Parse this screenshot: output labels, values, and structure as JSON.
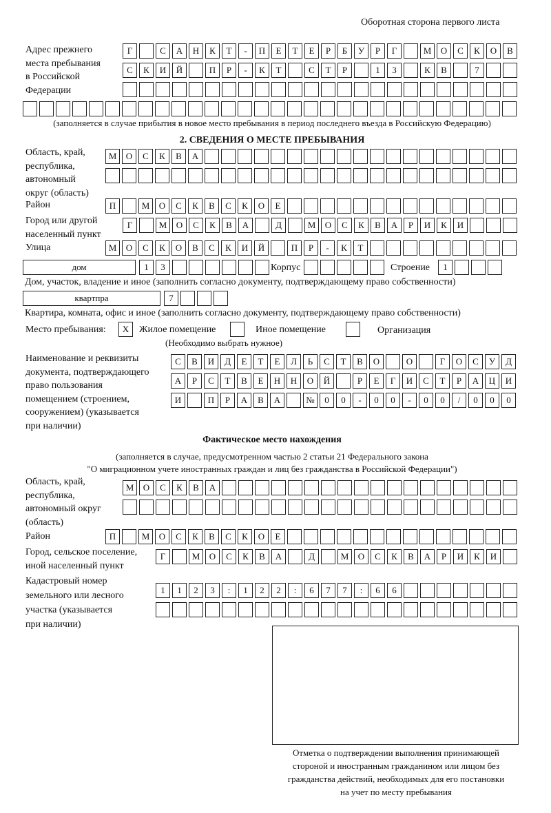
{
  "header": "Оборотная сторона первого листа",
  "prev_address": {
    "label": [
      "Адрес прежнего",
      "места пребывания",
      "в Российской",
      "Федерации"
    ],
    "rows": [
      [
        "Г",
        "",
        "С",
        "А",
        "Н",
        "К",
        "Т",
        "-",
        "П",
        "Е",
        "Т",
        "Е",
        "Р",
        "Б",
        "У",
        "Р",
        "Г",
        "",
        "М",
        "О",
        "С",
        "К",
        "О",
        "В"
      ],
      [
        "С",
        "К",
        "И",
        "Й",
        "",
        "П",
        "Р",
        "-",
        "К",
        "Т",
        "",
        "С",
        "Т",
        "Р",
        "",
        "1",
        "3",
        "",
        "К",
        "В",
        "",
        "7",
        "",
        ""
      ],
      [
        "",
        "",
        "",
        "",
        "",
        "",
        "",
        "",
        "",
        "",
        "",
        "",
        "",
        "",
        "",
        "",
        "",
        "",
        "",
        "",
        "",
        "",
        "",
        ""
      ],
      [
        "",
        "",
        "",
        "",
        "",
        "",
        "",
        "",
        "",
        "",
        "",
        "",
        "",
        "",
        "",
        "",
        "",
        "",
        "",
        "",
        "",
        "",
        "",
        "",
        "",
        "",
        "",
        "",
        "",
        ""
      ]
    ],
    "note": "(заполняется в случае прибытия в новое место пребывания в период последнего въезда в Российскую Федерацию)"
  },
  "section2": {
    "title": "2. СВЕДЕНИЯ О МЕСТЕ ПРЕБЫВАНИЯ",
    "region_label": [
      "Область, край,",
      "республика,",
      "автономный",
      "округ (область)"
    ],
    "region_rows": [
      [
        "М",
        "О",
        "С",
        "К",
        "В",
        "А",
        "",
        "",
        "",
        "",
        "",
        "",
        "",
        "",
        "",
        "",
        "",
        "",
        "",
        "",
        "",
        "",
        "",
        "",
        ""
      ],
      [
        "",
        "",
        "",
        "",
        "",
        "",
        "",
        "",
        "",
        "",
        "",
        "",
        "",
        "",
        "",
        "",
        "",
        "",
        "",
        "",
        "",
        "",
        "",
        "",
        ""
      ]
    ],
    "district_label": "Район",
    "district_row": [
      "П",
      "",
      "М",
      "О",
      "С",
      "К",
      "В",
      "С",
      "К",
      "О",
      "Е",
      "",
      "",
      "",
      "",
      "",
      "",
      "",
      "",
      "",
      "",
      "",
      "",
      "",
      ""
    ],
    "city_label": [
      "Город или другой",
      "населенный пункт"
    ],
    "city_row": [
      "Г",
      "",
      "М",
      "О",
      "С",
      "К",
      "В",
      "А",
      "",
      "Д",
      "",
      "М",
      "О",
      "С",
      "К",
      "В",
      "А",
      "Р",
      "И",
      "К",
      "И",
      "",
      "",
      ""
    ],
    "street_label": "Улица",
    "street_row": [
      "М",
      "О",
      "С",
      "К",
      "О",
      "В",
      "С",
      "К",
      "И",
      "Й",
      "",
      "П",
      "Р",
      "-",
      "К",
      "Т",
      "",
      "",
      "",
      "",
      "",
      "",
      "",
      "",
      ""
    ],
    "house_type": "дом",
    "house_cells": [
      "1",
      "3",
      "",
      "",
      "",
      "",
      "",
      ""
    ],
    "korpus_label": "Корпус",
    "korpus_cells": [
      "",
      "",
      "",
      "",
      ""
    ],
    "building_label": "Строение",
    "building_cells": [
      "1",
      "",
      "",
      ""
    ],
    "house_note": "Дом, участок, владение и иное (заполнить согласно документу, подтверждающему право собственности)",
    "flat_type": "квартпра",
    "flat_cells": [
      "7",
      "",
      "",
      ""
    ],
    "flat_note": "Квартира, комната, офис и иное (заполнить согласно документу, подтверждающему право собственности)",
    "stay_label": "Место пребывания:",
    "stay_options": [
      {
        "label": "Жилое помещение",
        "checked": true,
        "mark": "X"
      },
      {
        "label": "Иное помещение",
        "checked": false,
        "mark": ""
      },
      {
        "label": "Организация",
        "checked": false,
        "mark": ""
      }
    ],
    "stay_note": "(Необходимо выбрать нужное)",
    "doc_label": [
      "Наименование и реквизиты",
      "документа, подтверждающего",
      "право пользования",
      "помещением (строением,",
      "сооружением) (указывается",
      "при наличии)"
    ],
    "doc_rows": [
      [
        "С",
        "В",
        "И",
        "Д",
        "Е",
        "Т",
        "Е",
        "Л",
        "Ь",
        "С",
        "Т",
        "В",
        "О",
        "",
        "О",
        "",
        "Г",
        "О",
        "С",
        "У",
        "Д"
      ],
      [
        "А",
        "Р",
        "С",
        "Т",
        "В",
        "Е",
        "Н",
        "Н",
        "О",
        "Й",
        "",
        "Р",
        "Е",
        "Г",
        "И",
        "С",
        "Т",
        "Р",
        "А",
        "Ц",
        "И"
      ],
      [
        "И",
        "",
        "П",
        "Р",
        "А",
        "В",
        "А",
        "",
        "№",
        "0",
        "0",
        "-",
        "0",
        "0",
        "-",
        "0",
        "0",
        "/",
        "0",
        "0",
        "0"
      ]
    ]
  },
  "actual": {
    "title": "Фактическое место нахождения",
    "note1": "(заполняется в случае, предусмотренном частью 2 статьи 21 Федерального закона",
    "note2": "\"О миграционном учете иностранных граждан и лиц без гражданства в Российской Федерации\")",
    "region_label": [
      "Область, край,",
      "республика,",
      "автономный округ",
      "(область)"
    ],
    "region_rows": [
      [
        "М",
        "О",
        "С",
        "К",
        "В",
        "А",
        "",
        "",
        "",
        "",
        "",
        "",
        "",
        "",
        "",
        "",
        "",
        "",
        "",
        "",
        "",
        "",
        "",
        ""
      ],
      [
        "",
        "",
        "",
        "",
        "",
        "",
        "",
        "",
        "",
        "",
        "",
        "",
        "",
        "",
        "",
        "",
        "",
        "",
        "",
        "",
        "",
        "",
        "",
        ""
      ]
    ],
    "district_label": "Район",
    "district_row": [
      "П",
      "",
      "М",
      "О",
      "С",
      "К",
      "В",
      "С",
      "К",
      "О",
      "Е",
      "",
      "",
      "",
      "",
      "",
      "",
      "",
      "",
      "",
      "",
      "",
      "",
      "",
      ""
    ],
    "city_label": [
      "Город, сельское поселение,",
      "иной населенный пункт"
    ],
    "city_row": [
      "Г",
      "",
      "М",
      "О",
      "С",
      "К",
      "В",
      "А",
      "",
      "Д",
      "",
      "М",
      "О",
      "С",
      "К",
      "В",
      "А",
      "Р",
      "И",
      "К",
      "И",
      ""
    ],
    "cadastre_label": [
      "Кадастровый номер",
      "земельного или лесного",
      "участка (указывается",
      "при наличии)"
    ],
    "cadastre_rows": [
      [
        "1",
        "1",
        "2",
        "3",
        ":",
        "1",
        "2",
        "2",
        ":",
        "6",
        "7",
        "7",
        ":",
        "6",
        "6",
        "",
        "",
        "",
        "",
        "",
        "",
        ""
      ],
      [
        "",
        "",
        "",
        "",
        "",
        "",
        "",
        "",
        "",
        "",
        "",
        "",
        "",
        "",
        "",
        "",
        "",
        "",
        "",
        "",
        "",
        ""
      ]
    ],
    "stamp_caption": [
      "Отметка о подтверждении выполнения принимающей",
      "стороной и иностранным гражданином или лицом без",
      "гражданства действий, необходимых для его постановки",
      "на учет по месту пребывания"
    ]
  }
}
